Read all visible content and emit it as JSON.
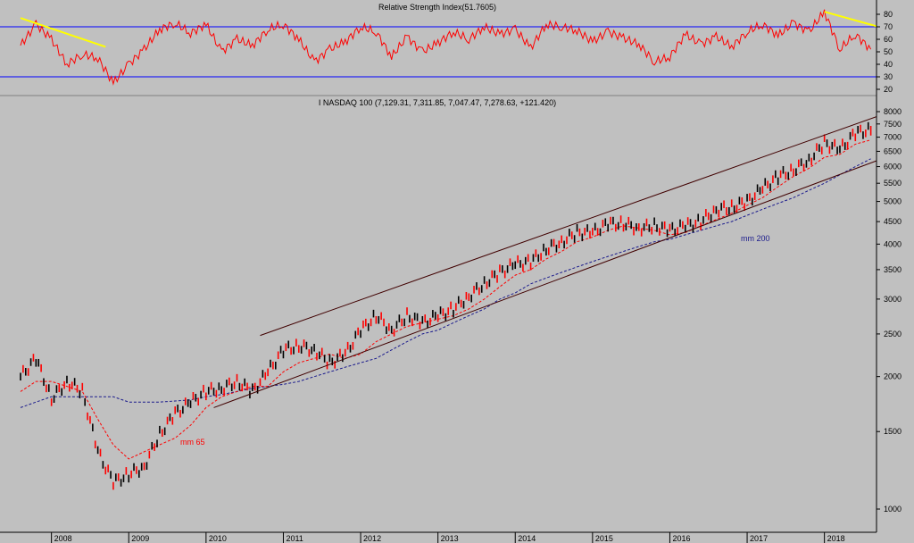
{
  "rsi_panel": {
    "title": "Relative Strength Index(51.7605)",
    "ticks": [
      "80",
      "70",
      "60",
      "50",
      "40",
      "30",
      "20"
    ],
    "levels": [
      70,
      30
    ],
    "line_color": "#ff0000",
    "level_color": "#0000ff",
    "trend_color": "#ffff00"
  },
  "price_panel": {
    "title": "I NASDAQ 100 (7,129.31, 7,311.85, 7,047.47, 7,278.63, +121.420)",
    "ticks": [
      "8000",
      "7500",
      "7000",
      "6500",
      "6000",
      "5500",
      "5000",
      "4500",
      "4000",
      "3500",
      "3000",
      "2500",
      "2000",
      "1500",
      "1000"
    ],
    "scale": "log",
    "up_color": "#ff0000",
    "down_color": "#000000",
    "channel_color": "#400000",
    "mm65_label": "mm 65",
    "mm65_color": "#ff0000",
    "mm200_label": "mm 200",
    "mm200_color": "#1a1a8c"
  },
  "x_axis": {
    "years": [
      "2008",
      "2009",
      "2010",
      "2011",
      "2012",
      "2013",
      "2014",
      "2015",
      "2016",
      "2017",
      "2018"
    ]
  },
  "chart_data": [
    {
      "type": "line",
      "title": "Relative Strength Index(51.7605)",
      "ylim": [
        15,
        85
      ],
      "levels": [
        70,
        30
      ],
      "last_value": 51.7605,
      "x": [
        2007.6,
        2007.8,
        2008.0,
        2008.2,
        2008.4,
        2008.6,
        2008.8,
        2009.0,
        2009.2,
        2009.4,
        2009.6,
        2009.8,
        2010.0,
        2010.2,
        2010.4,
        2010.6,
        2010.8,
        2011.0,
        2011.2,
        2011.4,
        2011.6,
        2011.8,
        2012.0,
        2012.2,
        2012.4,
        2012.6,
        2012.8,
        2013.0,
        2013.2,
        2013.4,
        2013.6,
        2013.8,
        2014.0,
        2014.2,
        2014.4,
        2014.6,
        2014.8,
        2015.0,
        2015.2,
        2015.4,
        2015.6,
        2015.8,
        2016.0,
        2016.2,
        2016.4,
        2016.6,
        2016.8,
        2017.0,
        2017.2,
        2017.4,
        2017.6,
        2017.8,
        2018.0,
        2018.2,
        2018.4,
        2018.6
      ],
      "y": [
        55,
        72,
        60,
        40,
        48,
        45,
        25,
        40,
        52,
        68,
        73,
        65,
        72,
        50,
        60,
        55,
        68,
        72,
        60,
        42,
        52,
        58,
        70,
        66,
        46,
        62,
        50,
        57,
        66,
        60,
        70,
        64,
        68,
        53,
        72,
        70,
        67,
        58,
        66,
        61,
        56,
        42,
        46,
        64,
        56,
        62,
        54,
        66,
        72,
        63,
        73,
        66,
        82,
        52,
        64,
        52
      ],
      "trendlines": [
        {
          "x": [
            2007.6,
            2008.7
          ],
          "y": [
            77,
            54
          ]
        },
        {
          "x": [
            2018.0,
            2018.7
          ],
          "y": [
            82,
            70
          ]
        }
      ]
    },
    {
      "type": "line",
      "title": "I NASDAQ 100 (7,129.31, 7,311.85, 7,047.47, 7,278.63, +121.420)",
      "scale": "log",
      "ylim": [
        950,
        8500
      ],
      "last_close": 7278.63,
      "x": [
        2007.6,
        2007.8,
        2008.0,
        2008.2,
        2008.4,
        2008.6,
        2008.8,
        2009.0,
        2009.2,
        2009.4,
        2009.6,
        2009.8,
        2010.0,
        2010.2,
        2010.4,
        2010.6,
        2010.8,
        2011.0,
        2011.2,
        2011.4,
        2011.6,
        2011.8,
        2012.0,
        2012.2,
        2012.4,
        2012.6,
        2012.8,
        2013.0,
        2013.2,
        2013.4,
        2013.6,
        2013.8,
        2014.0,
        2014.2,
        2014.4,
        2014.6,
        2014.8,
        2015.0,
        2015.2,
        2015.4,
        2015.6,
        2015.8,
        2016.0,
        2016.2,
        2016.4,
        2016.6,
        2016.8,
        2017.0,
        2017.2,
        2017.4,
        2017.6,
        2017.8,
        2018.0,
        2018.2,
        2018.4,
        2018.6
      ],
      "series": [
        {
          "name": "close",
          "values": [
            2000,
            2200,
            1780,
            1950,
            1850,
            1350,
            1150,
            1200,
            1250,
            1480,
            1650,
            1750,
            1850,
            1880,
            1950,
            1850,
            2050,
            2300,
            2350,
            2300,
            2150,
            2250,
            2550,
            2750,
            2550,
            2750,
            2650,
            2750,
            2850,
            3050,
            3250,
            3450,
            3600,
            3650,
            3900,
            4050,
            4250,
            4250,
            4450,
            4450,
            4350,
            4400,
            4300,
            4400,
            4500,
            4800,
            4850,
            5000,
            5350,
            5700,
            5900,
            6200,
            6800,
            6550,
            7150,
            7278.63
          ]
        },
        {
          "name": "mm 65",
          "values": [
            1850,
            1950,
            1950,
            1900,
            1850,
            1600,
            1400,
            1300,
            1350,
            1400,
            1450,
            1550,
            1700,
            1800,
            1850,
            1900,
            1900,
            2050,
            2150,
            2200,
            2250,
            2200,
            2250,
            2400,
            2500,
            2600,
            2650,
            2700,
            2750,
            2850,
            3000,
            3200,
            3400,
            3500,
            3700,
            3850,
            4050,
            4150,
            4300,
            4400,
            4350,
            4300,
            4200,
            4250,
            4400,
            4550,
            4700,
            4900,
            5100,
            5400,
            5700,
            5950,
            6300,
            6400,
            6750,
            6900
          ]
        },
        {
          "name": "mm 200",
          "values": [
            1700,
            1750,
            1800,
            1800,
            1800,
            1800,
            1800,
            1750,
            1750,
            1750,
            1760,
            1770,
            1800,
            1820,
            1850,
            1880,
            1900,
            1920,
            1950,
            2000,
            2050,
            2100,
            2150,
            2200,
            2300,
            2400,
            2500,
            2550,
            2650,
            2750,
            2850,
            3000,
            3100,
            3250,
            3350,
            3450,
            3550,
            3650,
            3750,
            3850,
            3950,
            4050,
            4100,
            4200,
            4300,
            4400,
            4500,
            4650,
            4800,
            4950,
            5100,
            5300,
            5500,
            5750,
            6000,
            6250
          ]
        }
      ],
      "channel": [
        {
          "x": [
            2010.7,
            2018.9
          ],
          "y": [
            2480,
            8050
          ]
        },
        {
          "x": [
            2010.1,
            2018.9
          ],
          "y": [
            1700,
            6400
          ]
        }
      ]
    }
  ]
}
